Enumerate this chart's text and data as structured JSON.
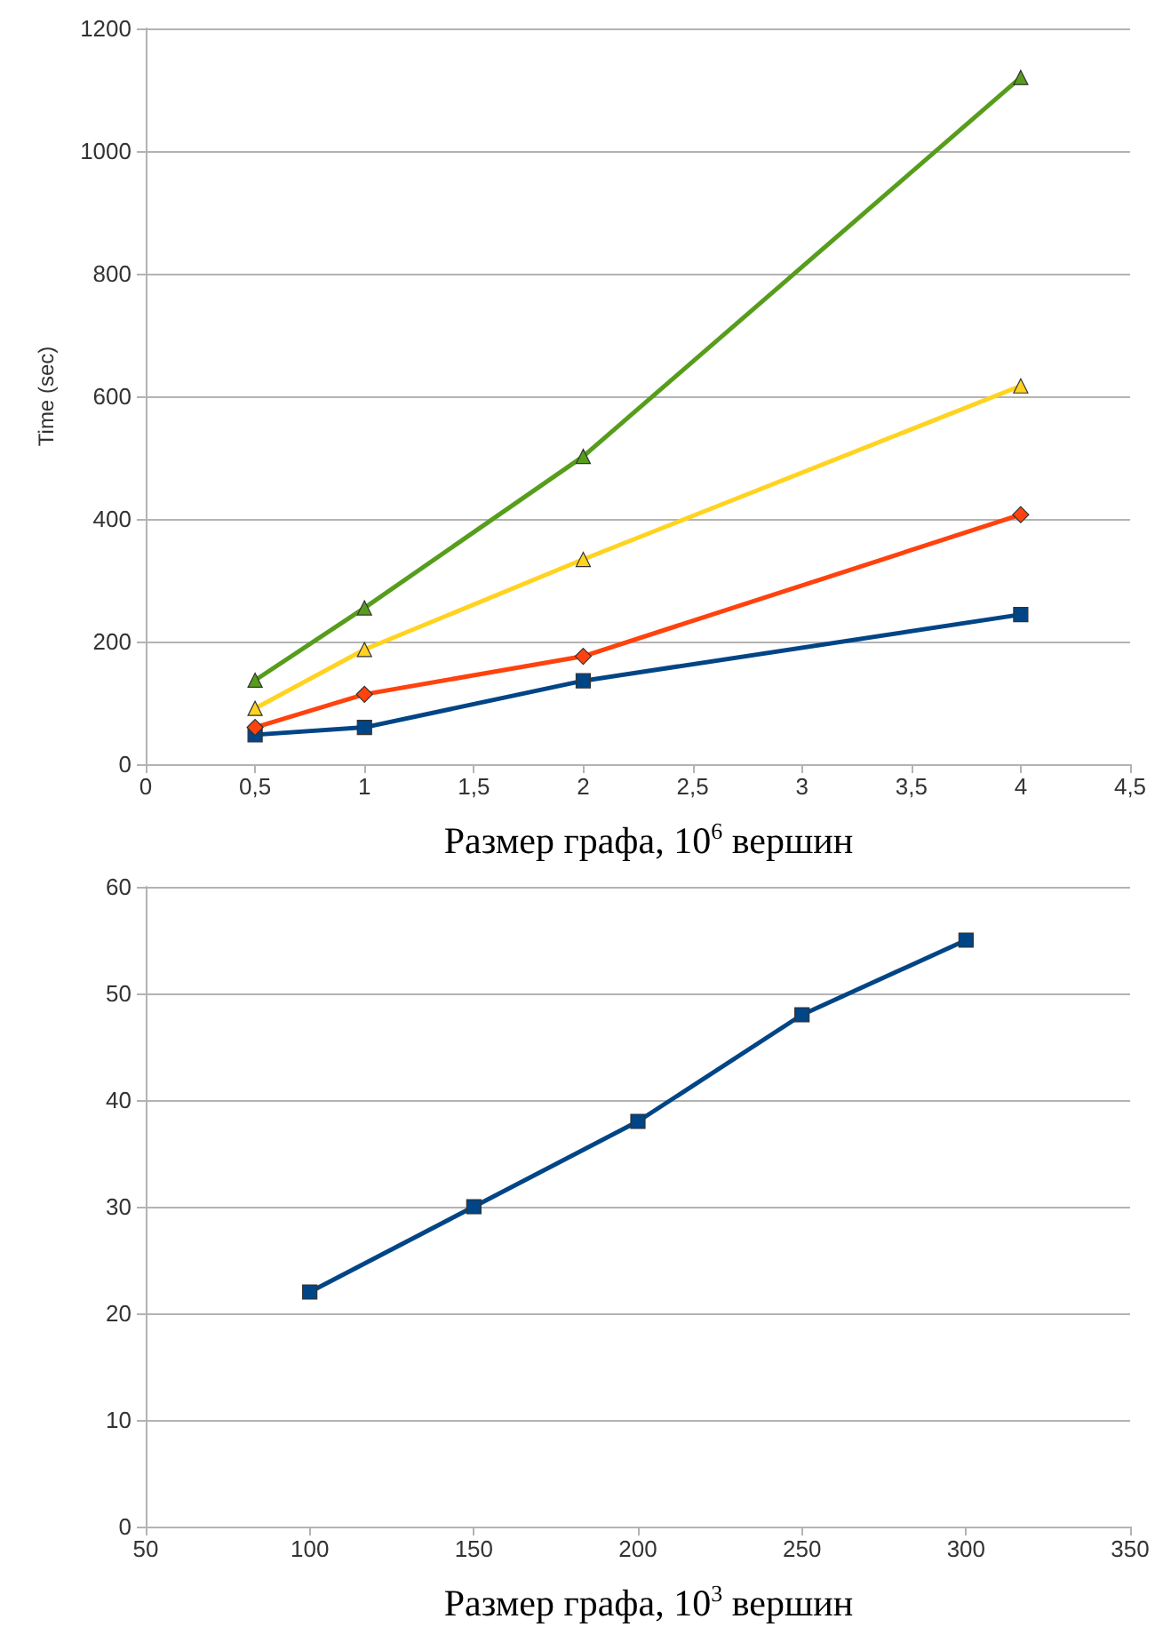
{
  "chart_data": [
    {
      "type": "line",
      "xlabel": "Размер графа, 10$^{6}$ вершин",
      "ylabel": "Time (sec)",
      "x": [
        0.5,
        1,
        2,
        4
      ],
      "series": [
        {
          "color": "#579d1c",
          "marker": "triangle",
          "values": [
            137,
            255,
            502,
            1120
          ]
        },
        {
          "color": "#ffd320",
          "marker": "triangle",
          "values": [
            91,
            187,
            334,
            617
          ]
        },
        {
          "color": "#ff420e",
          "marker": "diamond",
          "values": [
            60,
            114,
            176,
            407
          ]
        },
        {
          "color": "#004586",
          "marker": "square",
          "values": [
            48,
            60,
            136,
            244
          ]
        }
      ],
      "xlim": [
        0,
        4.5
      ],
      "xticks": [
        0,
        {
          "value": 0.5,
          "label": "0,5"
        },
        1,
        {
          "value": 1.5,
          "label": "1,5"
        },
        2,
        {
          "value": 2.5,
          "label": "2,5"
        },
        3,
        {
          "value": 3.5,
          "label": "3,5"
        },
        4,
        {
          "value": 4.5,
          "label": "4,5"
        }
      ],
      "ylim": [
        0,
        1200
      ],
      "yticks": [
        0,
        200,
        400,
        600,
        800,
        1000,
        1200
      ],
      "grid": "y",
      "line_style": "solid"
    },
    {
      "type": "line",
      "xlabel": "Размер графа, 10$^{3}$ вершин",
      "x": [
        100,
        150,
        200,
        250,
        300
      ],
      "series": [
        {
          "color": "#004586",
          "marker": "square",
          "values": [
            22,
            30,
            38,
            48,
            55
          ]
        }
      ],
      "xlim": [
        50,
        350
      ],
      "xticks": [
        50,
        100,
        150,
        200,
        250,
        300,
        350
      ],
      "ylim": [
        0,
        60
      ],
      "yticks": [
        0,
        10,
        20,
        30,
        40,
        50,
        60
      ],
      "grid": "y",
      "line_style": "solid"
    }
  ]
}
